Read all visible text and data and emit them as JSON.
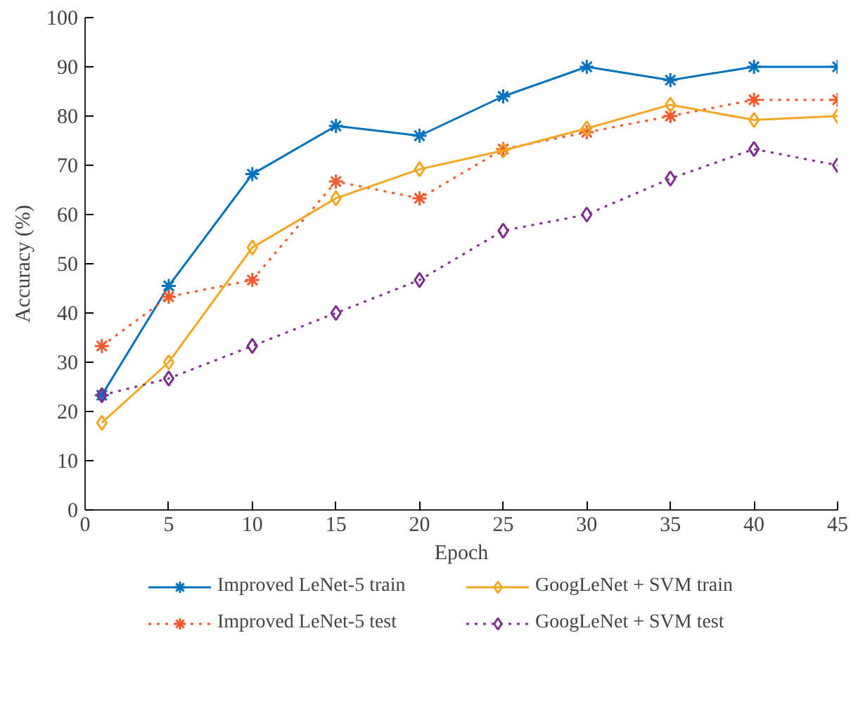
{
  "chart_data": {
    "type": "line",
    "xlabel": "Epoch",
    "ylabel": "Accuracy (%)",
    "x": [
      1,
      5,
      10,
      15,
      20,
      25,
      30,
      35,
      40,
      45
    ],
    "xlim": [
      0,
      45
    ],
    "xticks": [
      0,
      5,
      10,
      15,
      20,
      25,
      30,
      35,
      40,
      45
    ],
    "ylim": [
      0,
      100
    ],
    "yticks": [
      0,
      10,
      20,
      30,
      40,
      50,
      60,
      70,
      80,
      90,
      100
    ],
    "grid": false,
    "legend": "bottom",
    "series": [
      {
        "name": "Improved LeNet-5 train",
        "color": "#0072bd",
        "marker": "cross",
        "line_style": "solid",
        "values": [
          23.3,
          45.5,
          68.2,
          78,
          76,
          84,
          90,
          87.3,
          90,
          90
        ]
      },
      {
        "name": "Improved LeNet-5 test",
        "color": "#f4582a",
        "marker": "cross",
        "line_style": "dotted",
        "values": [
          33.3,
          43.3,
          46.7,
          66.7,
          63.3,
          73.3,
          76.7,
          80,
          83.3,
          83.3
        ]
      },
      {
        "name": "GoogLeNet + SVM train",
        "color": "#f5a623",
        "marker": "diamond",
        "line_style": "solid",
        "values": [
          17.7,
          30,
          53.3,
          63.3,
          69.2,
          73,
          77.5,
          82.3,
          79.2,
          80
        ]
      },
      {
        "name": "GoogLeNet + SVM test",
        "color": "#7e2f8e",
        "marker": "diamond",
        "line_style": "dotted",
        "values": [
          23.3,
          26.7,
          33.3,
          40,
          46.7,
          56.7,
          60,
          67.3,
          73.3,
          70
        ]
      }
    ]
  }
}
